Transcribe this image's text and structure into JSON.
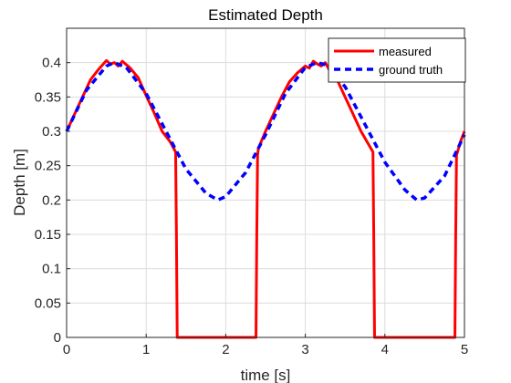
{
  "chart_data": {
    "type": "line",
    "title": "Estimated Depth",
    "xlabel": "time [s]",
    "ylabel": "Depth [m]",
    "xlim": [
      0,
      5
    ],
    "ylim": [
      0,
      0.45
    ],
    "xticks": [
      0,
      1,
      2,
      3,
      4,
      5
    ],
    "xtick_labels": [
      "0",
      "1",
      "2",
      "3",
      "4",
      "5"
    ],
    "yticks": [
      0,
      0.05,
      0.1,
      0.15,
      0.2,
      0.25,
      0.3,
      0.35,
      0.4
    ],
    "ytick_labels": [
      "0",
      "0.05",
      "0.1",
      "0.15",
      "0.2",
      "0.25",
      "0.3",
      "0.35",
      "0.4"
    ],
    "grid": true,
    "legend_position": "top-right",
    "series": [
      {
        "name": "measured",
        "color": "#ff0000",
        "style": "solid",
        "x": [
          0,
          0.1,
          0.2,
          0.3,
          0.4,
          0.5,
          0.55,
          0.6,
          0.65,
          0.7,
          0.75,
          0.8,
          0.9,
          1.0,
          1.1,
          1.2,
          1.3,
          1.37,
          1.38,
          1.39,
          1.4,
          2.0,
          2.38,
          2.39,
          2.4,
          2.41,
          2.5,
          2.6,
          2.7,
          2.8,
          2.9,
          3.0,
          3.05,
          3.1,
          3.15,
          3.2,
          3.25,
          3.3,
          3.4,
          3.5,
          3.6,
          3.7,
          3.8,
          3.85,
          3.86,
          3.87,
          3.88,
          4.5,
          4.88,
          4.89,
          4.9,
          4.95,
          5.0
        ],
        "y": [
          0.3,
          0.325,
          0.35,
          0.375,
          0.39,
          0.403,
          0.398,
          0.4,
          0.395,
          0.402,
          0.397,
          0.392,
          0.378,
          0.352,
          0.327,
          0.3,
          0.285,
          0.27,
          0.15,
          0.0,
          0.0,
          0.0,
          0.0,
          0.15,
          0.265,
          0.275,
          0.3,
          0.325,
          0.35,
          0.372,
          0.385,
          0.395,
          0.392,
          0.402,
          0.398,
          0.395,
          0.4,
          0.39,
          0.375,
          0.35,
          0.325,
          0.3,
          0.28,
          0.27,
          0.15,
          0.0,
          0.0,
          0.0,
          0.0,
          0.15,
          0.265,
          0.285,
          0.3
        ]
      },
      {
        "name": "ground truth",
        "color": "#0000ff",
        "style": "dashed",
        "x": [
          0,
          0.25,
          0.5,
          0.6,
          0.75,
          1.0,
          1.25,
          1.5,
          1.75,
          1.9,
          2.0,
          2.25,
          2.5,
          2.75,
          3.0,
          3.15,
          3.25,
          3.5,
          3.75,
          4.0,
          4.25,
          4.4,
          4.5,
          4.75,
          5.0
        ],
        "y": [
          0.3,
          0.36,
          0.395,
          0.4,
          0.393,
          0.355,
          0.3,
          0.245,
          0.21,
          0.2,
          0.205,
          0.24,
          0.295,
          0.355,
          0.393,
          0.4,
          0.397,
          0.365,
          0.31,
          0.255,
          0.215,
          0.2,
          0.203,
          0.235,
          0.295
        ]
      }
    ]
  }
}
